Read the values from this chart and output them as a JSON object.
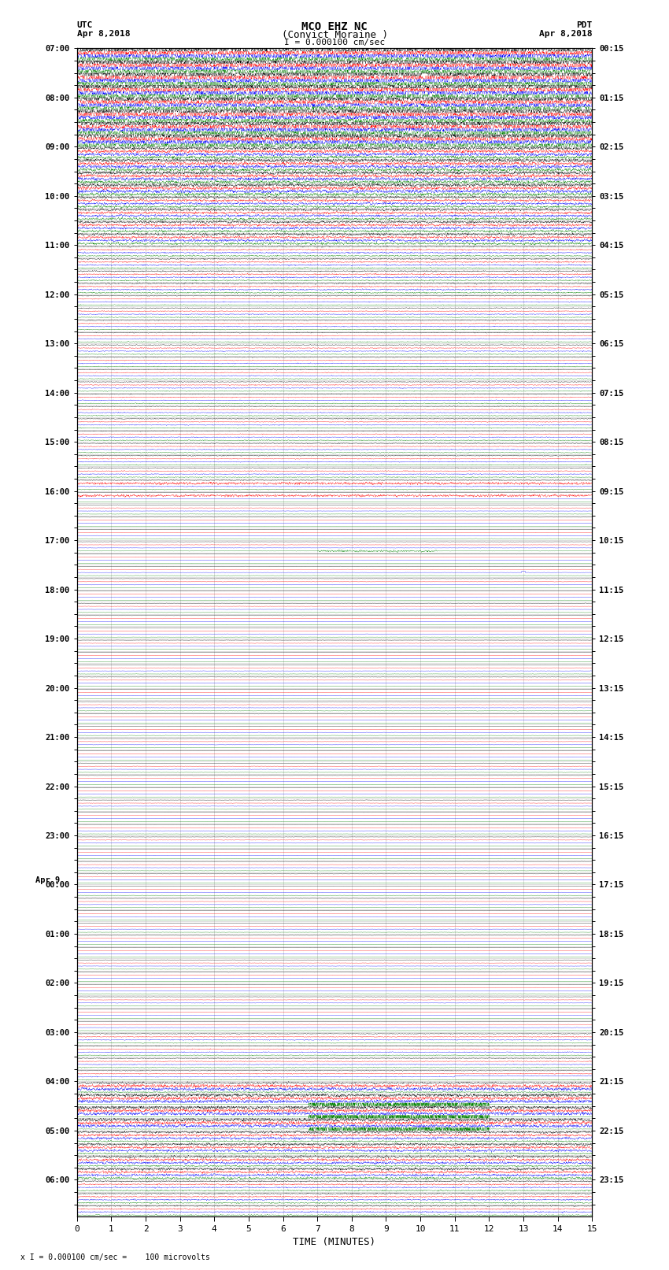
{
  "title_line1": "MCO EHZ NC",
  "title_line2": "(Convict Moraine )",
  "title_line3": "I = 0.000100 cm/sec",
  "label_left_top1": "UTC",
  "label_left_top2": "Apr 8,2018",
  "label_right_top1": "PDT",
  "label_right_top2": "Apr 8,2018",
  "xlabel": "TIME (MINUTES)",
  "footer": "x I = 0.000100 cm/sec =    100 microvolts",
  "bg_color": "#ffffff",
  "line_colors": [
    "black",
    "red",
    "blue",
    "green"
  ],
  "utc_labels": [
    "07:00",
    "",
    "",
    "",
    "08:00",
    "",
    "",
    "",
    "09:00",
    "",
    "",
    "",
    "10:00",
    "",
    "",
    "",
    "11:00",
    "",
    "",
    "",
    "12:00",
    "",
    "",
    "",
    "13:00",
    "",
    "",
    "",
    "14:00",
    "",
    "",
    "",
    "15:00",
    "",
    "",
    "",
    "16:00",
    "",
    "",
    "",
    "17:00",
    "",
    "",
    "",
    "18:00",
    "",
    "",
    "",
    "19:00",
    "",
    "",
    "",
    "20:00",
    "",
    "",
    "",
    "21:00",
    "",
    "",
    "",
    "22:00",
    "",
    "",
    "",
    "23:00",
    "",
    "",
    "",
    "00:00",
    "",
    "",
    "",
    "01:00",
    "",
    "",
    "",
    "02:00",
    "",
    "",
    "",
    "03:00",
    "",
    "",
    "",
    "04:00",
    "",
    "",
    "",
    "05:00",
    "",
    "",
    "",
    "06:00",
    "",
    ""
  ],
  "pdt_labels": [
    "00:15",
    "",
    "",
    "",
    "01:15",
    "",
    "",
    "",
    "02:15",
    "",
    "",
    "",
    "03:15",
    "",
    "",
    "",
    "04:15",
    "",
    "",
    "",
    "05:15",
    "",
    "",
    "",
    "06:15",
    "",
    "",
    "",
    "07:15",
    "",
    "",
    "",
    "08:15",
    "",
    "",
    "",
    "09:15",
    "",
    "",
    "",
    "10:15",
    "",
    "",
    "",
    "11:15",
    "",
    "",
    "",
    "12:15",
    "",
    "",
    "",
    "13:15",
    "",
    "",
    "",
    "14:15",
    "",
    "",
    "",
    "15:15",
    "",
    "",
    "",
    "16:15",
    "",
    "",
    "",
    "17:15",
    "",
    "",
    "",
    "18:15",
    "",
    "",
    "",
    "19:15",
    "",
    "",
    "",
    "20:15",
    "",
    "",
    "",
    "21:15",
    "",
    "",
    "",
    "22:15",
    "",
    "",
    "",
    "23:15",
    "",
    ""
  ],
  "num_rows": 95,
  "xmin": 0,
  "xmax": 15,
  "noise_seed": 42,
  "grid_color": "#888888",
  "apr9_row_index": 68
}
